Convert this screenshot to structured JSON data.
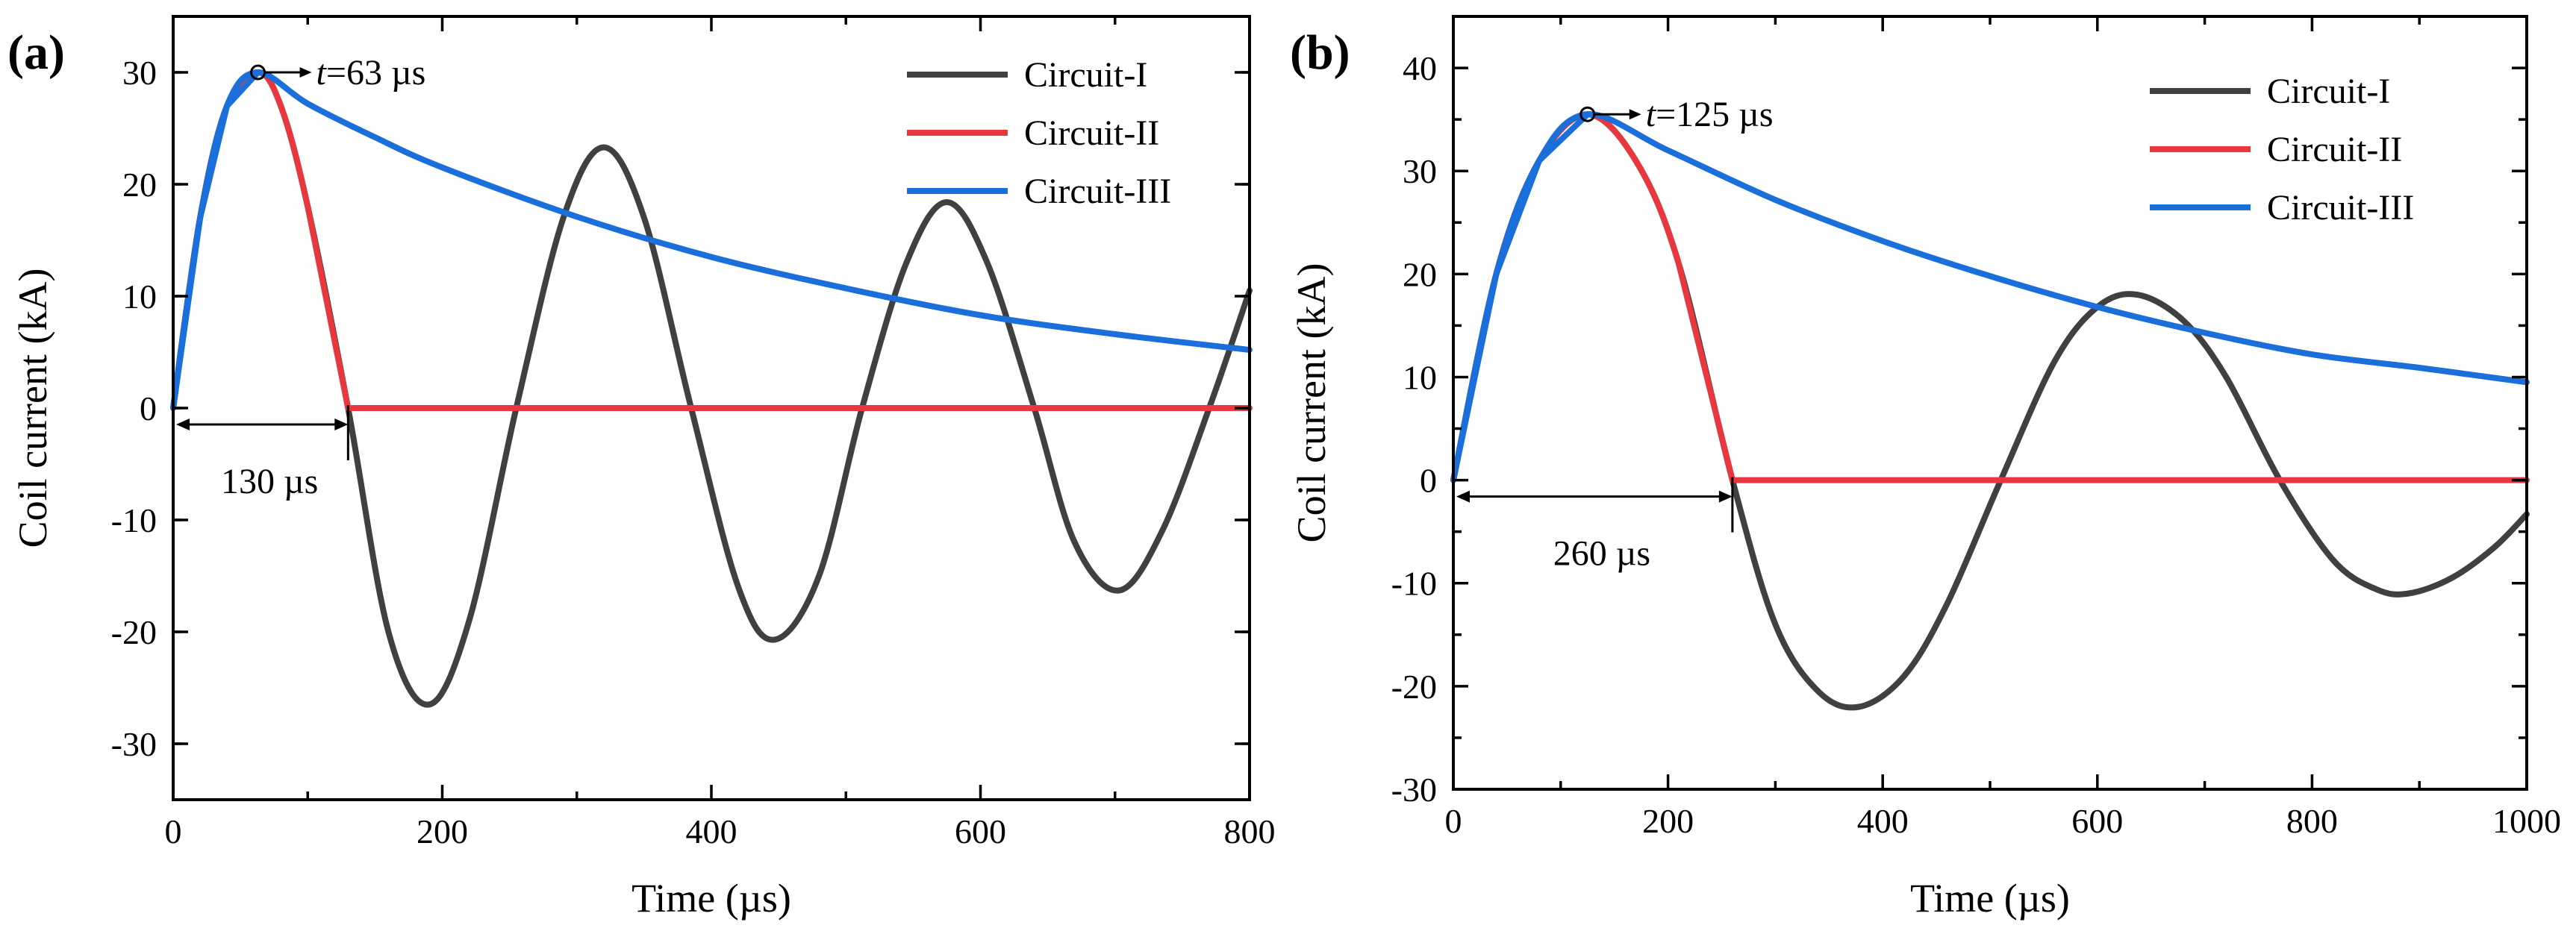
{
  "chart_data": [
    {
      "type": "line",
      "panel_label": "(a)",
      "xlabel": "Time (µs)",
      "ylabel": "Coil current (kA)",
      "xlim": [
        0,
        800
      ],
      "ylim": [
        -35,
        35
      ],
      "xticks": [
        0,
        200,
        400,
        600,
        800
      ],
      "xtick_labels": [
        "0",
        "200",
        "400",
        "600",
        "800"
      ],
      "yticks": [
        -30,
        -20,
        -10,
        0,
        10,
        20,
        30
      ],
      "ytick_labels": [
        "-30",
        "-20",
        "-10",
        "0",
        "10",
        "20",
        "30"
      ],
      "legend": {
        "placement": "top-right",
        "entries": [
          "Circuit-I",
          "Circuit-II",
          "Circuit-III"
        ]
      },
      "series": [
        {
          "name": "Circuit-I",
          "color": "#404040",
          "x": [
            0,
            20,
            40,
            63,
            80,
            100,
            130,
            160,
            190,
            220,
            255,
            290,
            320,
            350,
            385,
            420,
            447,
            480,
            512,
            545,
            575,
            605,
            640,
            670,
            703,
            735,
            770,
            800
          ],
          "y": [
            0,
            17,
            27,
            30,
            27,
            18,
            0,
            -20,
            -26.5,
            -19,
            0,
            17,
            23.3,
            17,
            0,
            -16,
            -20.7,
            -15,
            0,
            13,
            18.4,
            13,
            0,
            -12,
            -16.3,
            -11,
            0,
            10.5
          ]
        },
        {
          "name": "Circuit-II",
          "color": "#e8383d",
          "x": [
            0,
            20,
            40,
            63,
            80,
            100,
            130,
            200,
            300,
            400,
            500,
            600,
            700,
            800
          ],
          "y": [
            0,
            17,
            27,
            30,
            27,
            18,
            0,
            0,
            0,
            0,
            0,
            0,
            0,
            0
          ]
        },
        {
          "name": "Circuit-III",
          "color": "#1a6fdb",
          "x": [
            0,
            20,
            40,
            63,
            100,
            150,
            200,
            300,
            400,
            500,
            600,
            700,
            800
          ],
          "y": [
            0,
            17,
            27,
            30,
            27.2,
            24.2,
            21.5,
            17.1,
            13.5,
            10.7,
            8.3,
            6.6,
            5.2
          ]
        }
      ],
      "annotations": [
        {
          "text_italic": "t",
          "text": "=63 µs"
        },
        {
          "text": "130 µs"
        }
      ]
    },
    {
      "type": "line",
      "panel_label": "(b)",
      "xlabel": "Time (µs)",
      "ylabel": "Coil current (kA)",
      "xlim": [
        0,
        1000
      ],
      "ylim": [
        -30,
        45
      ],
      "xticks": [
        0,
        200,
        400,
        600,
        800,
        1000
      ],
      "xtick_labels": [
        "0",
        "200",
        "400",
        "600",
        "800",
        "1000"
      ],
      "yticks": [
        -30,
        -20,
        -10,
        0,
        10,
        20,
        30,
        40
      ],
      "ytick_labels": [
        "-30",
        "-20",
        "-10",
        "0",
        "10",
        "20",
        "30",
        "40"
      ],
      "legend": {
        "placement": "top-right",
        "entries": [
          "Circuit-I",
          "Circuit-II",
          "Circuit-III"
        ]
      },
      "series": [
        {
          "name": "Circuit-I",
          "color": "#404040",
          "x": [
            0,
            40,
            80,
            125,
            170,
            210,
            260,
            300,
            340,
            378,
            420,
            460,
            510,
            560,
            600,
            637,
            680,
            720,
            770,
            820,
            860,
            890,
            930,
            970,
            1000
          ],
          "y": [
            0,
            20,
            31,
            35.5,
            31,
            21,
            0,
            -14,
            -20.5,
            -22,
            -19,
            -12,
            0,
            11.5,
            16.8,
            18,
            15.5,
            10,
            0,
            -7.8,
            -10.6,
            -11,
            -9.5,
            -6.5,
            -3.3
          ]
        },
        {
          "name": "Circuit-II",
          "color": "#e8383d",
          "x": [
            0,
            40,
            80,
            125,
            170,
            210,
            260,
            300,
            400,
            500,
            600,
            700,
            800,
            900,
            1000
          ],
          "y": [
            0,
            20,
            31,
            35.5,
            31,
            21,
            0,
            0,
            0,
            0,
            0,
            0,
            0,
            0,
            0
          ]
        },
        {
          "name": "Circuit-III",
          "color": "#1a6fdb",
          "x": [
            0,
            40,
            80,
            125,
            200,
            300,
            400,
            500,
            600,
            700,
            800,
            900,
            1000
          ],
          "y": [
            0,
            20,
            31,
            35.5,
            32,
            27.2,
            23.2,
            19.8,
            16.8,
            14.3,
            12.2,
            10.9,
            9.5
          ]
        }
      ],
      "annotations": [
        {
          "text_italic": "t",
          "text": "=125 µs"
        },
        {
          "text": "260 µs"
        }
      ]
    }
  ]
}
